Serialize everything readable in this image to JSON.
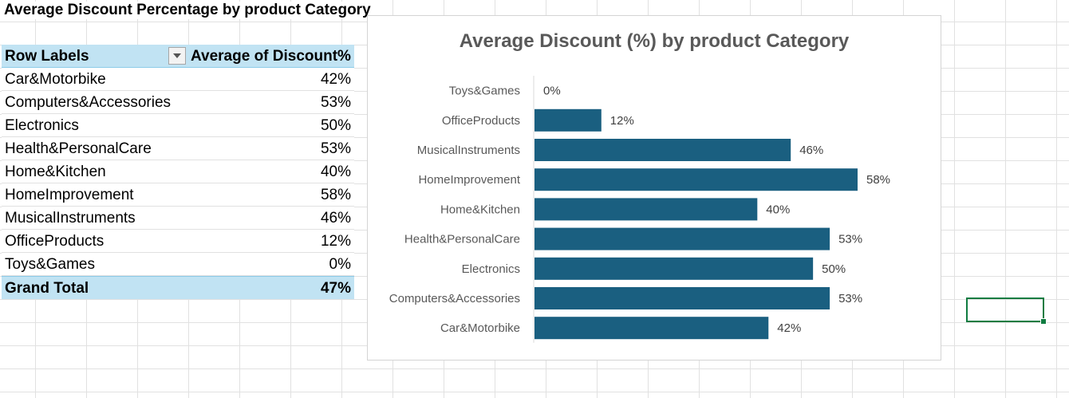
{
  "sheet": {
    "title": "Average Discount Percentage by product Category"
  },
  "pivot": {
    "header_row_labels": "Row Labels",
    "header_value": "Average of Discount%",
    "rows": [
      {
        "label": "Car&Motorbike",
        "value": "42%"
      },
      {
        "label": "Computers&Accessories",
        "value": "53%"
      },
      {
        "label": "Electronics",
        "value": "50%"
      },
      {
        "label": "Health&PersonalCare",
        "value": "53%"
      },
      {
        "label": "Home&Kitchen",
        "value": "40%"
      },
      {
        "label": "HomeImprovement",
        "value": "58%"
      },
      {
        "label": "MusicalInstruments",
        "value": "46%"
      },
      {
        "label": "OfficeProducts",
        "value": "12%"
      },
      {
        "label": "Toys&Games",
        "value": "0%"
      }
    ],
    "total_label": "Grand Total",
    "total_value": "47%"
  },
  "chart_data": {
    "type": "bar",
    "orientation": "horizontal",
    "title": "Average Discount (%) by product Category",
    "categories": [
      "Toys&Games",
      "OfficeProducts",
      "MusicalInstruments",
      "HomeImprovement",
      "Home&Kitchen",
      "Health&PersonalCare",
      "Electronics",
      "Computers&Accessories",
      "Car&Motorbike"
    ],
    "values": [
      0,
      12,
      46,
      58,
      40,
      53,
      50,
      53,
      42
    ],
    "value_labels": [
      "0%",
      "12%",
      "46%",
      "58%",
      "40%",
      "53%",
      "50%",
      "53%",
      "42%"
    ],
    "xlim": [
      0,
      60
    ],
    "bar_color": "#1a5f80",
    "grid": false,
    "legend": "none"
  },
  "colors": {
    "pivot_header": "#c1e3f3",
    "selection": "#107c41"
  }
}
